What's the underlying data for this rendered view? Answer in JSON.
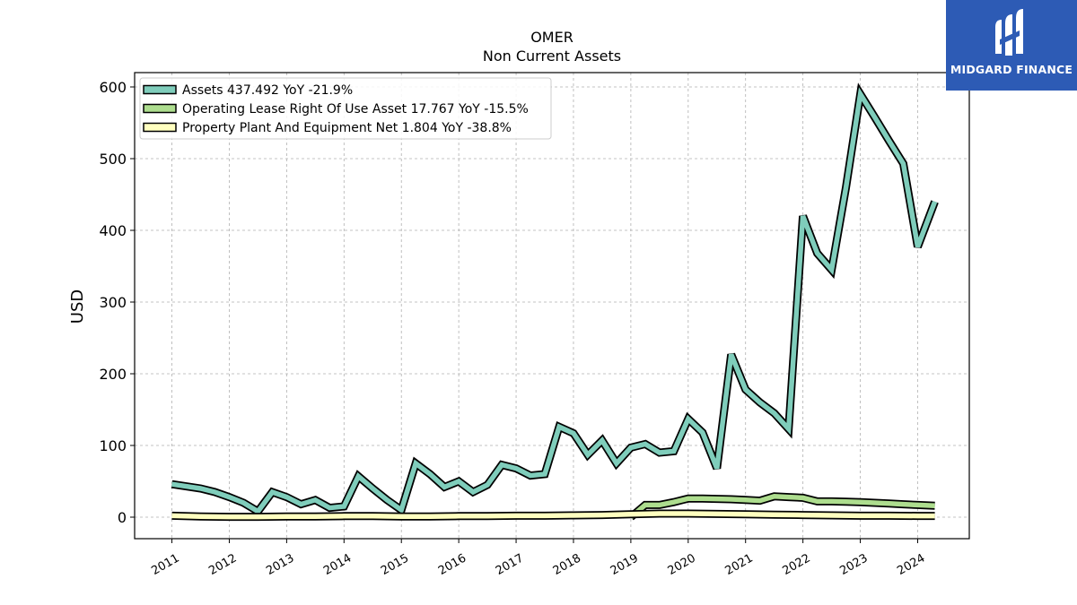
{
  "brand": {
    "name": "MIDGARD FINANCE",
    "color": "#2d5bb5"
  },
  "chart_data": {
    "type": "line",
    "title": "OMER",
    "subtitle": "Non Current  Assets",
    "ylabel": "USD",
    "xlabel": "",
    "ylim": [
      -30,
      620
    ],
    "xlim": [
      2010.35,
      2024.9
    ],
    "yticks": [
      0,
      100,
      200,
      300,
      400,
      500,
      600
    ],
    "xticks": [
      "2011",
      "2012",
      "2013",
      "2014",
      "2015",
      "2016",
      "2017",
      "2018",
      "2019",
      "2020",
      "2021",
      "2022",
      "2023",
      "2024"
    ],
    "grid": true,
    "legend_position": "top-left",
    "series": [
      {
        "name": "Assets  437.492 YoY -21.9%",
        "color": "#7fcdbb",
        "x": [
          2011.0,
          2011.5,
          2011.75,
          2012.0,
          2012.25,
          2012.5,
          2012.75,
          2013.0,
          2013.25,
          2013.5,
          2013.75,
          2014.0,
          2014.25,
          2014.5,
          2014.75,
          2015.0,
          2015.25,
          2015.5,
          2015.75,
          2016.0,
          2016.25,
          2016.5,
          2016.75,
          2017.0,
          2017.25,
          2017.5,
          2017.75,
          2018.0,
          2018.25,
          2018.5,
          2018.75,
          2019.0,
          2019.25,
          2019.5,
          2019.75,
          2020.0,
          2020.25,
          2020.5,
          2020.75,
          2021.0,
          2021.25,
          2021.5,
          2021.75,
          2022.0,
          2022.25,
          2022.5,
          2022.75,
          2023.0,
          2023.25,
          2023.5,
          2023.75,
          2024.0,
          2024.3
        ],
        "values": [
          46,
          40,
          35,
          28,
          20,
          8,
          35,
          28,
          18,
          24,
          13,
          15,
          57,
          40,
          24,
          10,
          75,
          60,
          42,
          50,
          35,
          45,
          73,
          68,
          58,
          60,
          126,
          117,
          87,
          107,
          75,
          97,
          102,
          90,
          92,
          137,
          118,
          68,
          227,
          178,
          160,
          145,
          123,
          420,
          368,
          345,
          460,
          590,
          558,
          525,
          493,
          377,
          440
        ]
      },
      {
        "name": "Operating Lease Right Of Use Asset  17.767 YoY -15.5%",
        "color": "#addd8e",
        "x": [
          2019.0,
          2019.25,
          2019.5,
          2019.75,
          2020.0,
          2020.25,
          2020.5,
          2020.75,
          2021.0,
          2021.25,
          2021.5,
          2021.75,
          2022.0,
          2022.25,
          2022.5,
          2022.75,
          2023.0,
          2023.25,
          2023.5,
          2023.75,
          2024.0,
          2024.3
        ],
        "values": [
          0,
          17,
          17,
          21,
          26,
          26,
          25.5,
          25,
          24,
          23,
          29,
          28,
          27,
          22,
          22,
          21.5,
          21,
          20,
          19,
          18,
          17,
          16
        ]
      },
      {
        "name": "Property Plant And Equipment Net  1.804 YoY -38.8%",
        "color": "#ffffbf",
        "x": [
          2011.0,
          2011.5,
          2012.0,
          2012.5,
          2013.0,
          2013.5,
          2014.0,
          2014.5,
          2015.0,
          2015.5,
          2016.0,
          2016.5,
          2017.0,
          2017.5,
          2018.0,
          2018.5,
          2019.0,
          2019.5,
          2020.0,
          2020.5,
          2021.0,
          2021.5,
          2022.0,
          2022.5,
          2023.0,
          2023.5,
          2024.0,
          2024.3
        ],
        "values": [
          2,
          1,
          0.5,
          0.5,
          1,
          1,
          1.5,
          1.5,
          1,
          1,
          1.5,
          1.5,
          2,
          2,
          2.5,
          3,
          4,
          5,
          5,
          4.5,
          4,
          3.5,
          3,
          2.5,
          2,
          2,
          1.8,
          1.8
        ]
      }
    ]
  }
}
